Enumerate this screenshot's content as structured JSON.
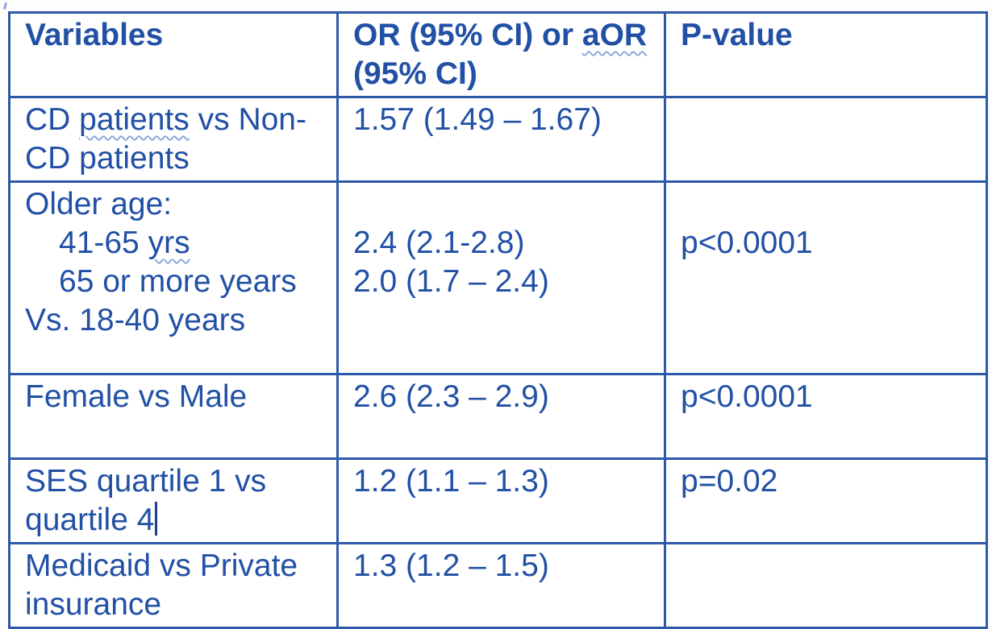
{
  "document": {
    "kind": "statistics-results-table",
    "colors": {
      "border": "#2e59a8",
      "text": "#2150a5",
      "spellcheck_underline": "#8fa9dc",
      "caret": "#1d3f8f",
      "background": "#fdfdfd"
    }
  },
  "table": {
    "column_headers": [
      "Variables",
      "OR (95% CI) or aOR (95% CI)",
      "P-value"
    ],
    "rows": [
      {
        "header": true,
        "cells": [
          {
            "lines": [
              {
                "segments": [
                  {
                    "t": "Variables"
                  }
                ]
              }
            ]
          },
          {
            "lines": [
              {
                "segments": [
                  {
                    "t": "OR (95% CI) or "
                  },
                  {
                    "t": "aOR",
                    "wavy": true
                  }
                ]
              },
              {
                "segments": [
                  {
                    "t": "(95% CI)"
                  }
                ]
              }
            ]
          },
          {
            "lines": [
              {
                "segments": [
                  {
                    "t": "P-value"
                  }
                ]
              }
            ]
          }
        ]
      },
      {
        "cells": [
          {
            "lines": [
              {
                "segments": [
                  {
                    "t": "CD "
                  },
                  {
                    "t": "patients",
                    "wavy": true
                  },
                  {
                    "t": " vs Non-"
                  }
                ]
              },
              {
                "segments": [
                  {
                    "t": "CD patients"
                  }
                ]
              }
            ]
          },
          {
            "lines": [
              {
                "segments": [
                  {
                    "t": "1.57 (1.49 – 1.67)"
                  }
                ]
              }
            ]
          },
          {
            "lines": []
          }
        ]
      },
      {
        "cells": [
          {
            "lines": [
              {
                "segments": [
                  {
                    "t": "Older age:"
                  }
                ]
              },
              {
                "indent": true,
                "segments": [
                  {
                    "t": "41-65 "
                  },
                  {
                    "t": "yrs",
                    "wavy": true
                  }
                ]
              },
              {
                "indent": true,
                "segments": [
                  {
                    "t": "65 or more years"
                  }
                ]
              },
              {
                "segments": [
                  {
                    "t": "Vs. 18-40 years"
                  }
                ]
              }
            ]
          },
          {
            "lines": [
              {
                "segments": []
              },
              {
                "segments": [
                  {
                    "t": "2.4 (2.1-2.8)"
                  }
                ]
              },
              {
                "segments": [
                  {
                    "t": "2.0 (1.7 – 2.4)"
                  }
                ]
              }
            ]
          },
          {
            "lines": [
              {
                "segments": []
              },
              {
                "segments": [
                  {
                    "t": "p<0.0001"
                  }
                ]
              }
            ]
          }
        ]
      },
      {
        "cells": [
          {
            "lines": [
              {
                "segments": [
                  {
                    "t": "Female vs Male"
                  }
                ]
              }
            ]
          },
          {
            "lines": [
              {
                "segments": [
                  {
                    "t": "2.6 (2.3 – 2.9)"
                  }
                ]
              }
            ]
          },
          {
            "lines": [
              {
                "segments": [
                  {
                    "t": "p<0.0001"
                  }
                ]
              }
            ]
          }
        ]
      },
      {
        "cells": [
          {
            "lines": [
              {
                "segments": [
                  {
                    "t": "SES quartile 1 vs"
                  }
                ]
              },
              {
                "segments": [
                  {
                    "t": "quartile 4",
                    "cursor": true
                  }
                ]
              }
            ]
          },
          {
            "lines": [
              {
                "segments": [
                  {
                    "t": "1.2 (1.1 – 1.3)"
                  }
                ]
              }
            ]
          },
          {
            "lines": [
              {
                "segments": [
                  {
                    "t": "p=0.02"
                  }
                ]
              }
            ]
          }
        ]
      },
      {
        "cells": [
          {
            "lines": [
              {
                "segments": [
                  {
                    "t": "Medicaid vs Private"
                  }
                ]
              },
              {
                "segments": [
                  {
                    "t": "insurance"
                  }
                ]
              }
            ]
          },
          {
            "lines": [
              {
                "segments": [
                  {
                    "t": "1.3 (1.2 – 1.5)"
                  }
                ]
              }
            ]
          },
          {
            "lines": []
          }
        ]
      }
    ]
  }
}
